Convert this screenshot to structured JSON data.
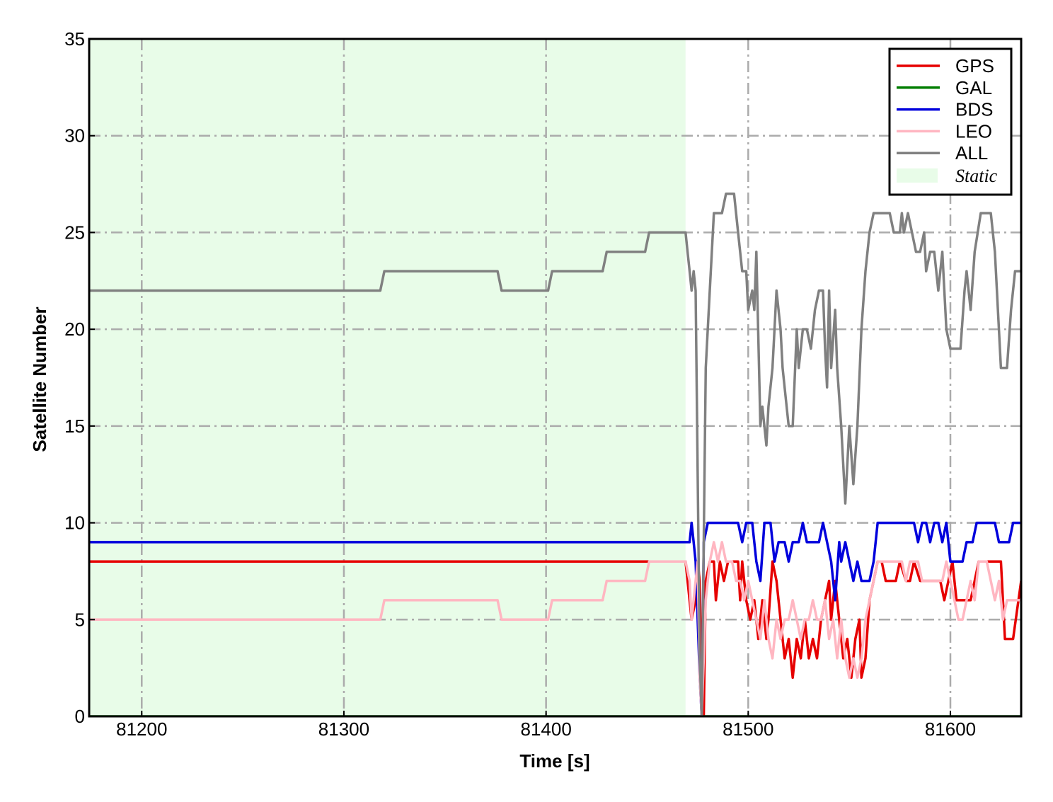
{
  "chart_data": {
    "type": "line",
    "title": "",
    "xlabel": "Time [s]",
    "ylabel": "Satellite Number",
    "xlim": [
      81174,
      81635
    ],
    "ylim": [
      0,
      35
    ],
    "xticks": [
      81200,
      81300,
      81400,
      81500,
      81600
    ],
    "yticks": [
      0,
      5,
      10,
      15,
      20,
      25,
      30,
      35
    ],
    "grid": true,
    "legend_position": "top-right",
    "static_region": {
      "label": "Static",
      "x_start": 81174,
      "x_end": 81469,
      "color": "#e8fce8"
    },
    "series": [
      {
        "name": "GPS",
        "color": "#e60000",
        "points": [
          [
            81174,
            8
          ],
          [
            81469,
            8
          ],
          [
            81470,
            7
          ],
          [
            81472,
            5
          ],
          [
            81474,
            6
          ],
          [
            81475,
            8
          ],
          [
            81476,
            7
          ],
          [
            81477,
            1
          ],
          [
            81478,
            0
          ],
          [
            81479,
            7
          ],
          [
            81481,
            8
          ],
          [
            81483,
            8
          ],
          [
            81484,
            6
          ],
          [
            81486,
            8
          ],
          [
            81488,
            7
          ],
          [
            81490,
            8
          ],
          [
            81495,
            8
          ],
          [
            81496,
            6
          ],
          [
            81497,
            8
          ],
          [
            81499,
            6
          ],
          [
            81501,
            5
          ],
          [
            81503,
            6
          ],
          [
            81505,
            4
          ],
          [
            81507,
            6
          ],
          [
            81509,
            4
          ],
          [
            81510,
            5
          ],
          [
            81512,
            8
          ],
          [
            81514,
            7
          ],
          [
            81516,
            5
          ],
          [
            81518,
            3
          ],
          [
            81520,
            4
          ],
          [
            81522,
            2
          ],
          [
            81524,
            4
          ],
          [
            81526,
            3
          ],
          [
            81528,
            5
          ],
          [
            81530,
            3
          ],
          [
            81532,
            4
          ],
          [
            81534,
            3
          ],
          [
            81536,
            5
          ],
          [
            81538,
            6
          ],
          [
            81540,
            7
          ],
          [
            81541,
            5
          ],
          [
            81543,
            7
          ],
          [
            81545,
            5
          ],
          [
            81547,
            3
          ],
          [
            81549,
            4
          ],
          [
            81551,
            2
          ],
          [
            81553,
            4
          ],
          [
            81555,
            5
          ],
          [
            81556,
            2
          ],
          [
            81558,
            3
          ],
          [
            81560,
            6
          ],
          [
            81562,
            7
          ],
          [
            81564,
            8
          ],
          [
            81566,
            8
          ],
          [
            81568,
            7
          ],
          [
            81573,
            7
          ],
          [
            81575,
            8
          ],
          [
            81578,
            7
          ],
          [
            81580,
            7
          ],
          [
            81582,
            8
          ],
          [
            81585,
            7
          ],
          [
            81595,
            7
          ],
          [
            81597,
            6
          ],
          [
            81599,
            7
          ],
          [
            81601,
            8
          ],
          [
            81603,
            6
          ],
          [
            81610,
            6
          ],
          [
            81612,
            7
          ],
          [
            81614,
            8
          ],
          [
            81625,
            8
          ],
          [
            81627,
            4
          ],
          [
            81631,
            4
          ],
          [
            81635,
            7
          ]
        ]
      },
      {
        "name": "GAL",
        "color": "#007d00",
        "points": [
          [
            81174,
            0
          ],
          [
            81635,
            0
          ]
        ]
      },
      {
        "name": "BDS",
        "color": "#0000dc",
        "points": [
          [
            81174,
            9
          ],
          [
            81471,
            9
          ],
          [
            81472,
            10
          ],
          [
            81473,
            9
          ],
          [
            81474,
            8
          ],
          [
            81476,
            2
          ],
          [
            81477,
            0
          ],
          [
            81478,
            9
          ],
          [
            81480,
            10
          ],
          [
            81495,
            10
          ],
          [
            81497,
            9
          ],
          [
            81499,
            10
          ],
          [
            81502,
            10
          ],
          [
            81504,
            8
          ],
          [
            81506,
            7
          ],
          [
            81508,
            10
          ],
          [
            81511,
            10
          ],
          [
            81513,
            8
          ],
          [
            81515,
            9
          ],
          [
            81518,
            9
          ],
          [
            81520,
            8
          ],
          [
            81522,
            9
          ],
          [
            81525,
            9
          ],
          [
            81527,
            10
          ],
          [
            81529,
            9
          ],
          [
            81535,
            9
          ],
          [
            81537,
            10
          ],
          [
            81539,
            9
          ],
          [
            81541,
            8
          ],
          [
            81543,
            6
          ],
          [
            81545,
            9
          ],
          [
            81546,
            8
          ],
          [
            81548,
            9
          ],
          [
            81550,
            8
          ],
          [
            81552,
            7
          ],
          [
            81554,
            8
          ],
          [
            81556,
            7
          ],
          [
            81560,
            7
          ],
          [
            81562,
            8
          ],
          [
            81564,
            10
          ],
          [
            81582,
            10
          ],
          [
            81584,
            9
          ],
          [
            81586,
            10
          ],
          [
            81588,
            10
          ],
          [
            81590,
            9
          ],
          [
            81592,
            10
          ],
          [
            81594,
            10
          ],
          [
            81596,
            9
          ],
          [
            81598,
            10
          ],
          [
            81600,
            8
          ],
          [
            81606,
            8
          ],
          [
            81608,
            9
          ],
          [
            81611,
            9
          ],
          [
            81613,
            10
          ],
          [
            81622,
            10
          ],
          [
            81624,
            9
          ],
          [
            81629,
            9
          ],
          [
            81631,
            10
          ],
          [
            81635,
            10
          ]
        ]
      },
      {
        "name": "LEO",
        "color": "#ffb6c1",
        "points": [
          [
            81174,
            5
          ],
          [
            81318,
            5
          ],
          [
            81320,
            6
          ],
          [
            81376,
            6
          ],
          [
            81378,
            5
          ],
          [
            81401,
            5
          ],
          [
            81403,
            6
          ],
          [
            81428,
            6
          ],
          [
            81430,
            7
          ],
          [
            81449,
            7
          ],
          [
            81451,
            8
          ],
          [
            81469,
            8
          ],
          [
            81471,
            7
          ],
          [
            81472,
            5
          ],
          [
            81474,
            7
          ],
          [
            81475,
            8
          ],
          [
            81476,
            2
          ],
          [
            81477,
            0
          ],
          [
            81479,
            6
          ],
          [
            81481,
            8
          ],
          [
            81483,
            9
          ],
          [
            81485,
            8
          ],
          [
            81487,
            9
          ],
          [
            81489,
            8
          ],
          [
            81492,
            8
          ],
          [
            81494,
            7
          ],
          [
            81496,
            7
          ],
          [
            81498,
            6
          ],
          [
            81500,
            7
          ],
          [
            81502,
            6
          ],
          [
            81504,
            5
          ],
          [
            81506,
            4
          ],
          [
            81508,
            6
          ],
          [
            81510,
            4
          ],
          [
            81512,
            3
          ],
          [
            81514,
            5
          ],
          [
            81516,
            4
          ],
          [
            81518,
            5
          ],
          [
            81520,
            5
          ],
          [
            81522,
            6
          ],
          [
            81524,
            5
          ],
          [
            81526,
            4
          ],
          [
            81528,
            5
          ],
          [
            81530,
            5
          ],
          [
            81532,
            6
          ],
          [
            81534,
            5
          ],
          [
            81536,
            5
          ],
          [
            81538,
            6
          ],
          [
            81540,
            4
          ],
          [
            81542,
            5
          ],
          [
            81544,
            3
          ],
          [
            81546,
            5
          ],
          [
            81548,
            3
          ],
          [
            81550,
            2
          ],
          [
            81552,
            3
          ],
          [
            81554,
            2
          ],
          [
            81556,
            3
          ],
          [
            81558,
            5
          ],
          [
            81560,
            6
          ],
          [
            81562,
            7
          ],
          [
            81564,
            8
          ],
          [
            81576,
            8
          ],
          [
            81578,
            7
          ],
          [
            81580,
            8
          ],
          [
            81584,
            8
          ],
          [
            81586,
            7
          ],
          [
            81596,
            7
          ],
          [
            81598,
            8
          ],
          [
            81600,
            7
          ],
          [
            81602,
            6
          ],
          [
            81604,
            5
          ],
          [
            81606,
            5
          ],
          [
            81608,
            6
          ],
          [
            81610,
            7
          ],
          [
            81612,
            6
          ],
          [
            81614,
            8
          ],
          [
            81618,
            8
          ],
          [
            81620,
            7
          ],
          [
            81622,
            6
          ],
          [
            81624,
            7
          ],
          [
            81626,
            5
          ],
          [
            81628,
            6
          ],
          [
            81635,
            6
          ]
        ]
      },
      {
        "name": "ALL",
        "color": "#808080",
        "points": [
          [
            81174,
            22
          ],
          [
            81318,
            22
          ],
          [
            81320,
            23
          ],
          [
            81376,
            23
          ],
          [
            81378,
            22
          ],
          [
            81401,
            22
          ],
          [
            81403,
            23
          ],
          [
            81428,
            23
          ],
          [
            81430,
            24
          ],
          [
            81449,
            24
          ],
          [
            81451,
            25
          ],
          [
            81469,
            25
          ],
          [
            81470,
            24
          ],
          [
            81471,
            23
          ],
          [
            81472,
            22
          ],
          [
            81473,
            23
          ],
          [
            81474,
            22
          ],
          [
            81476,
            3
          ],
          [
            81477,
            0
          ],
          [
            81479,
            18
          ],
          [
            81481,
            22
          ],
          [
            81483,
            26
          ],
          [
            81487,
            26
          ],
          [
            81489,
            27
          ],
          [
            81493,
            27
          ],
          [
            81495,
            25
          ],
          [
            81497,
            23
          ],
          [
            81499,
            23
          ],
          [
            81500,
            21
          ],
          [
            81502,
            22
          ],
          [
            81503,
            21
          ],
          [
            81504,
            24
          ],
          [
            81506,
            15
          ],
          [
            81507,
            16
          ],
          [
            81509,
            14
          ],
          [
            81510,
            16
          ],
          [
            81512,
            18
          ],
          [
            81514,
            22
          ],
          [
            81516,
            20
          ],
          [
            81517,
            18
          ],
          [
            81519,
            16
          ],
          [
            81520,
            15
          ],
          [
            81522,
            15
          ],
          [
            81524,
            20
          ],
          [
            81525,
            18
          ],
          [
            81527,
            20
          ],
          [
            81529,
            20
          ],
          [
            81531,
            19
          ],
          [
            81533,
            21
          ],
          [
            81535,
            22
          ],
          [
            81537,
            22
          ],
          [
            81538,
            19
          ],
          [
            81539,
            17
          ],
          [
            81540,
            22
          ],
          [
            81541,
            18
          ],
          [
            81543,
            21
          ],
          [
            81544,
            18
          ],
          [
            81546,
            15
          ],
          [
            81547,
            13
          ],
          [
            81548,
            11
          ],
          [
            81550,
            15
          ],
          [
            81552,
            12
          ],
          [
            81554,
            15
          ],
          [
            81556,
            20
          ],
          [
            81558,
            23
          ],
          [
            81560,
            25
          ],
          [
            81562,
            26
          ],
          [
            81570,
            26
          ],
          [
            81572,
            25
          ],
          [
            81575,
            25
          ],
          [
            81576,
            26
          ],
          [
            81577,
            25
          ],
          [
            81579,
            26
          ],
          [
            81581,
            25
          ],
          [
            81583,
            24
          ],
          [
            81585,
            24
          ],
          [
            81587,
            25
          ],
          [
            81588,
            23
          ],
          [
            81590,
            24
          ],
          [
            81592,
            24
          ],
          [
            81594,
            22
          ],
          [
            81596,
            24
          ],
          [
            81598,
            20
          ],
          [
            81600,
            19
          ],
          [
            81605,
            19
          ],
          [
            81607,
            22
          ],
          [
            81608,
            23
          ],
          [
            81610,
            21
          ],
          [
            81612,
            24
          ],
          [
            81615,
            26
          ],
          [
            81620,
            26
          ],
          [
            81622,
            24
          ],
          [
            81625,
            18
          ],
          [
            81628,
            18
          ],
          [
            81630,
            21
          ],
          [
            81632,
            23
          ],
          [
            81635,
            23
          ]
        ]
      }
    ]
  }
}
